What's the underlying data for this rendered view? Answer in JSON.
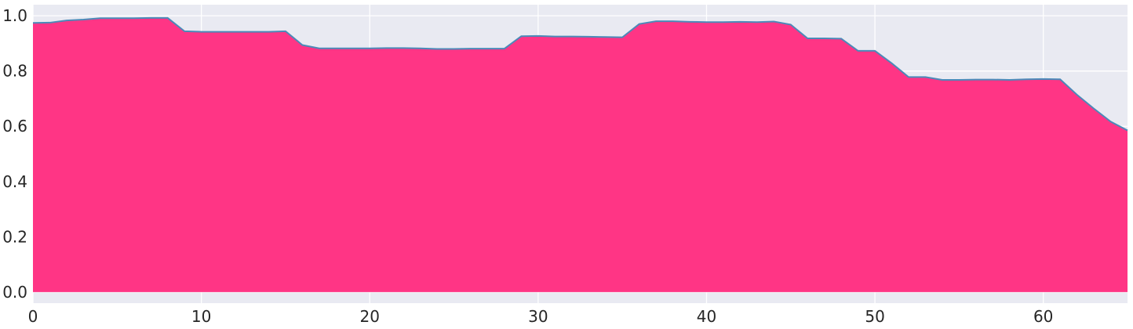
{
  "chart_data": {
    "type": "area",
    "title": "",
    "xlabel": "",
    "ylabel": "",
    "xlim": [
      0,
      65
    ],
    "ylim": [
      -0.04,
      1.04
    ],
    "grid": true,
    "legend": "none",
    "x": [
      0,
      1,
      2,
      3,
      4,
      5,
      6,
      7,
      8,
      9,
      10,
      11,
      12,
      13,
      14,
      15,
      16,
      17,
      18,
      19,
      20,
      21,
      22,
      23,
      24,
      25,
      26,
      27,
      28,
      29,
      30,
      31,
      32,
      33,
      34,
      35,
      36,
      37,
      38,
      39,
      40,
      41,
      42,
      43,
      44,
      45,
      46,
      47,
      48,
      49,
      50,
      51,
      52,
      53,
      54,
      55,
      56,
      57,
      58,
      59,
      60,
      61,
      62,
      63,
      64,
      65
    ],
    "series": [
      {
        "values": [
          0.974,
          0.975,
          0.983,
          0.986,
          0.991,
          0.991,
          0.991,
          0.992,
          0.992,
          0.944,
          0.942,
          0.942,
          0.942,
          0.942,
          0.942,
          0.944,
          0.894,
          0.882,
          0.882,
          0.882,
          0.882,
          0.883,
          0.883,
          0.882,
          0.88,
          0.88,
          0.881,
          0.881,
          0.881,
          0.926,
          0.927,
          0.925,
          0.925,
          0.924,
          0.923,
          0.922,
          0.97,
          0.98,
          0.98,
          0.978,
          0.977,
          0.977,
          0.978,
          0.977,
          0.979,
          0.968,
          0.918,
          0.918,
          0.917,
          0.873,
          0.873,
          0.828,
          0.778,
          0.778,
          0.768,
          0.768,
          0.769,
          0.769,
          0.768,
          0.77,
          0.771,
          0.77,
          0.714,
          0.664,
          0.617,
          0.585
        ]
      }
    ],
    "x_ticks": [
      0,
      10,
      20,
      30,
      40,
      50,
      60
    ],
    "x_tick_labels": [
      "0",
      "10",
      "20",
      "30",
      "40",
      "50",
      "60"
    ],
    "y_ticks": [
      0.0,
      0.2,
      0.4,
      0.6,
      0.8,
      1.0
    ],
    "y_tick_labels": [
      "0.0",
      "0.2",
      "0.4",
      "0.6",
      "0.8",
      "1.0"
    ],
    "colors": {
      "fill": "#ff3585",
      "line": "#4c89b8",
      "plot_background": "#e9eaf2",
      "grid": "#ffffff",
      "text": "#262626"
    }
  }
}
